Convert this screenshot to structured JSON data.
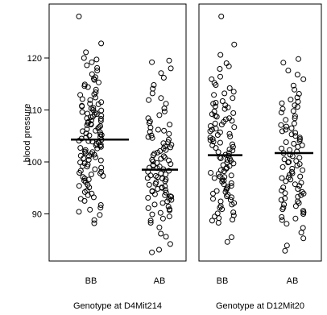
{
  "chart_data": {
    "type": "scatter",
    "plot_kind": "dot plot (jittered strip chart) with group means",
    "ylabel": "blood pressure",
    "ylim": [
      81,
      130
    ],
    "yticks": [
      90,
      100,
      110,
      120
    ],
    "grid": false,
    "panels": [
      {
        "xlabel": "Genotype at D4Mit214",
        "categories": [
          "BB",
          "AB"
        ],
        "means": [
          104.3,
          98.5
        ],
        "values": {
          "BB": [
            128.0,
            122.8,
            121.1,
            120.0,
            119.7,
            119.2,
            118.6,
            118.1,
            117.6,
            116.9,
            116.3,
            115.8,
            115.3,
            114.9,
            114.4,
            113.9,
            113.4,
            112.9,
            112.4,
            111.9,
            111.5,
            111.1,
            110.7,
            110.3,
            109.9,
            109.5,
            109.1,
            108.7,
            108.3,
            107.9,
            107.5,
            107.1,
            106.7,
            106.3,
            105.9,
            105.5,
            105.1,
            104.7,
            104.3,
            103.9,
            103.5,
            103.1,
            102.7,
            102.3,
            101.9,
            101.5,
            101.1,
            100.7,
            100.3,
            99.9,
            99.5,
            99.1,
            98.6,
            98.1,
            97.6,
            97.1,
            96.6,
            96.1,
            95.6,
            95.1,
            94.5,
            93.9,
            93.2,
            92.5,
            91.7,
            90.8,
            89.8,
            88.8,
            88.2,
            108.0,
            107.2,
            106.0,
            105.2,
            104.0,
            103.2,
            102.0,
            110.0,
            109.3,
            108.4,
            107.7,
            106.5,
            105.7,
            104.5,
            103.7,
            101.2,
            100.4,
            99.2,
            98.3,
            97.3,
            96.4,
            113.0,
            112.1,
            111.2,
            110.4,
            109.6,
            108.9,
            106.9,
            105.3,
            104.8,
            103.3,
            102.6,
            101.7,
            95.4,
            94.2,
            92.9,
            90.4,
            116.0,
            114.6,
            109.2,
            107.3,
            100.9,
            99.7,
            97.8,
            96.8,
            93.6,
            91.2,
            110.8,
            108.6,
            104.1,
            102.9,
            101.4,
            98.9,
            97.9
          ],
          "AB": [
            119.5,
            119.2,
            118.0,
            117.1,
            116.2,
            114.8,
            114.1,
            113.2,
            112.3,
            111.9,
            111.2,
            110.3,
            109.7,
            109.0,
            108.4,
            107.8,
            107.2,
            106.6,
            106.0,
            105.4,
            104.8,
            104.3,
            103.8,
            103.3,
            102.8,
            102.3,
            101.8,
            101.3,
            100.8,
            100.3,
            99.8,
            99.3,
            98.8,
            98.3,
            97.8,
            97.3,
            96.8,
            96.3,
            95.8,
            95.3,
            94.8,
            94.3,
            93.8,
            93.3,
            92.7,
            92.1,
            91.4,
            90.7,
            89.9,
            89.1,
            88.3,
            87.4,
            86.2,
            85.6,
            84.2,
            83.1,
            82.6,
            106.2,
            105.1,
            103.6,
            102.1,
            100.6,
            99.1,
            97.6,
            96.1,
            94.6,
            93.1,
            91.8,
            90.2,
            104.6,
            103.0,
            101.6,
            100.1,
            98.6,
            97.1,
            95.6,
            94.1,
            92.4,
            90.9,
            89.5,
            101.1,
            99.6,
            98.1,
            96.6,
            95.1,
            93.6,
            92.9,
            91.1,
            88.7,
            107.5,
            105.8,
            98.9,
            96.9,
            95.0,
            93.4,
            100.4,
            97.4,
            94.4,
            102.6,
            99.4
          ],
          "_note": "values are approximate readings of the plotted points"
        }
      },
      {
        "xlabel": "Genotype at D12Mit20",
        "categories": [
          "BB",
          "AB"
        ],
        "means": [
          101.3,
          101.7
        ],
        "values": {
          "BB": [
            128.0,
            122.6,
            120.6,
            119.0,
            118.4,
            117.9,
            116.4,
            115.9,
            114.8,
            114.2,
            113.5,
            112.9,
            112.3,
            111.7,
            111.2,
            110.7,
            110.2,
            109.7,
            109.2,
            108.7,
            108.2,
            107.7,
            107.2,
            106.7,
            106.2,
            105.7,
            105.2,
            104.7,
            104.2,
            103.7,
            103.2,
            102.7,
            102.2,
            101.7,
            101.2,
            100.7,
            100.2,
            99.7,
            99.2,
            98.7,
            98.2,
            97.7,
            97.2,
            96.7,
            96.2,
            95.7,
            95.2,
            94.7,
            94.2,
            93.7,
            93.2,
            92.7,
            92.1,
            91.5,
            90.9,
            90.3,
            89.7,
            89.2,
            88.7,
            88.3,
            85.5,
            84.6,
            110.5,
            109.4,
            108.4,
            107.4,
            106.4,
            105.4,
            104.4,
            103.4,
            102.4,
            101.4,
            100.4,
            99.4,
            98.4,
            97.4,
            96.4,
            95.4,
            94.4,
            93.4,
            92.4,
            91.2,
            89.5,
            113.2,
            111.4,
            107.9,
            104.9,
            101.9,
            98.9,
            95.9,
            92.9,
            90.1,
            88.9,
            105.9,
            103.9,
            100.9,
            97.9,
            94.9,
            91.8,
            115.2,
            108.9,
            102.9,
            99.9,
            96.9,
            93.9,
            110.9,
            106.9,
            100.6,
            97.1
          ],
          "AB": [
            119.8,
            119.1,
            117.6,
            116.8,
            115.9,
            114.7,
            113.9,
            113.1,
            112.4,
            111.6,
            110.9,
            110.2,
            109.5,
            108.8,
            108.1,
            107.4,
            106.8,
            106.2,
            105.6,
            105.0,
            104.4,
            103.8,
            103.2,
            102.6,
            102.0,
            101.4,
            100.8,
            100.2,
            99.6,
            99.0,
            98.4,
            97.8,
            97.2,
            96.6,
            96.0,
            95.4,
            94.8,
            94.2,
            93.6,
            93.0,
            92.4,
            91.8,
            91.2,
            90.6,
            90.0,
            89.4,
            88.8,
            88.1,
            87.3,
            86.4,
            85.3,
            83.9,
            82.9,
            107.1,
            105.3,
            103.5,
            101.7,
            99.9,
            98.1,
            96.3,
            94.5,
            92.7,
            90.9,
            89.1,
            106.5,
            104.7,
            102.9,
            101.1,
            99.3,
            97.5,
            95.7,
            93.9,
            92.1,
            90.3,
            110.6,
            108.4,
            104.1,
            100.5,
            96.9,
            93.3,
            91.5,
            112.0,
            109.8,
            102.3,
            98.7,
            95.1,
            111.3,
            105.9,
            100.0,
            97.0,
            94.0
          ],
          "_note": "values are approximate readings of the plotted points"
        }
      }
    ]
  }
}
